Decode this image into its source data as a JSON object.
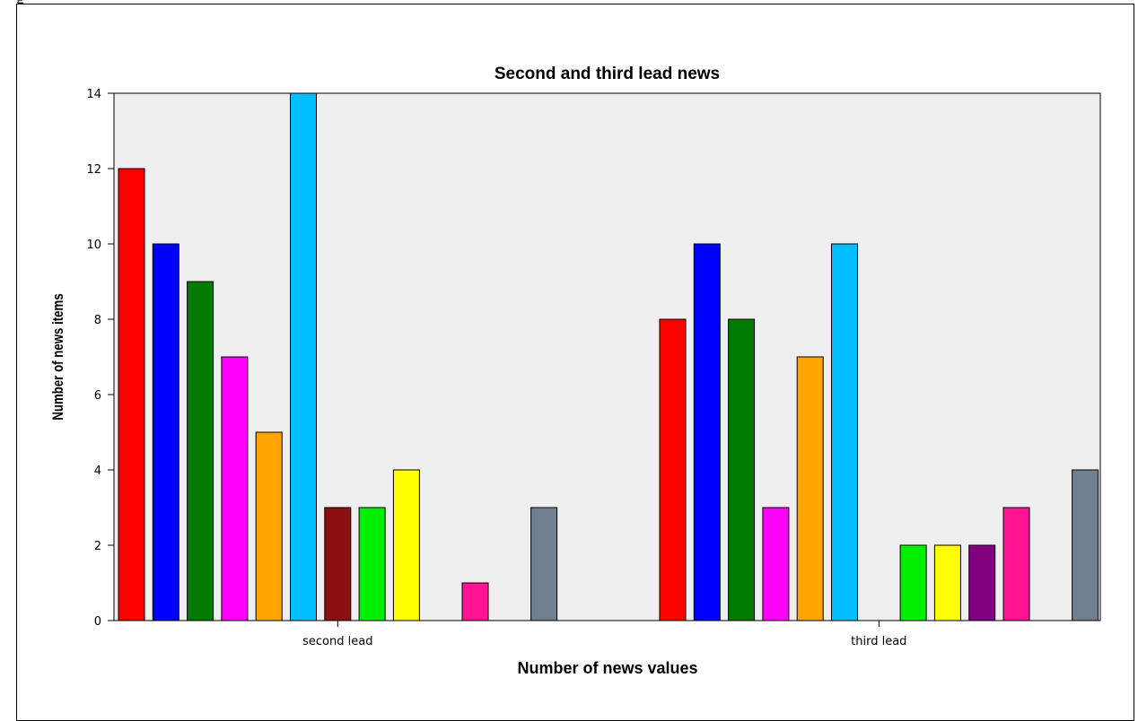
{
  "page": {
    "top_text": "g"
  },
  "chart_data": {
    "type": "bar",
    "title": "Second and third lead news",
    "xlabel": "Number of news values",
    "ylabel": "Number of news items",
    "ylim": [
      0,
      14
    ],
    "yticks": [
      0,
      2,
      4,
      6,
      8,
      10,
      12,
      14
    ],
    "grid": false,
    "categories": [
      "second lead",
      "third lead"
    ],
    "series": [
      {
        "color": "#ff0000",
        "values": [
          12,
          8
        ]
      },
      {
        "color": "#0000ff",
        "values": [
          10,
          10
        ]
      },
      {
        "color": "#007a00",
        "values": [
          9,
          8
        ]
      },
      {
        "color": "#ff00ff",
        "values": [
          7,
          3
        ]
      },
      {
        "color": "#ffa500",
        "values": [
          5,
          7
        ]
      },
      {
        "color": "#00bfff",
        "values": [
          14,
          10
        ]
      },
      {
        "color": "#8b1010",
        "values": [
          3,
          0
        ]
      },
      {
        "color": "#00ee00",
        "values": [
          3,
          2
        ]
      },
      {
        "color": "#ffff00",
        "values": [
          4,
          2
        ]
      },
      {
        "color": "#800080",
        "values": [
          0,
          2
        ]
      },
      {
        "color": "#ff1493",
        "values": [
          1,
          3
        ]
      },
      {
        "color": "#c0c0c0",
        "values": [
          0,
          0
        ]
      },
      {
        "color": "#708090",
        "values": [
          3,
          4
        ]
      }
    ]
  }
}
